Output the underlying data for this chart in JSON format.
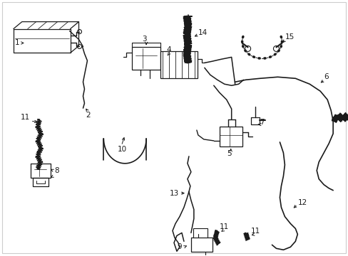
{
  "background": "#ffffff",
  "line_color": "#1a1a1a",
  "fig_width": 4.89,
  "fig_height": 3.6,
  "dpi": 100
}
